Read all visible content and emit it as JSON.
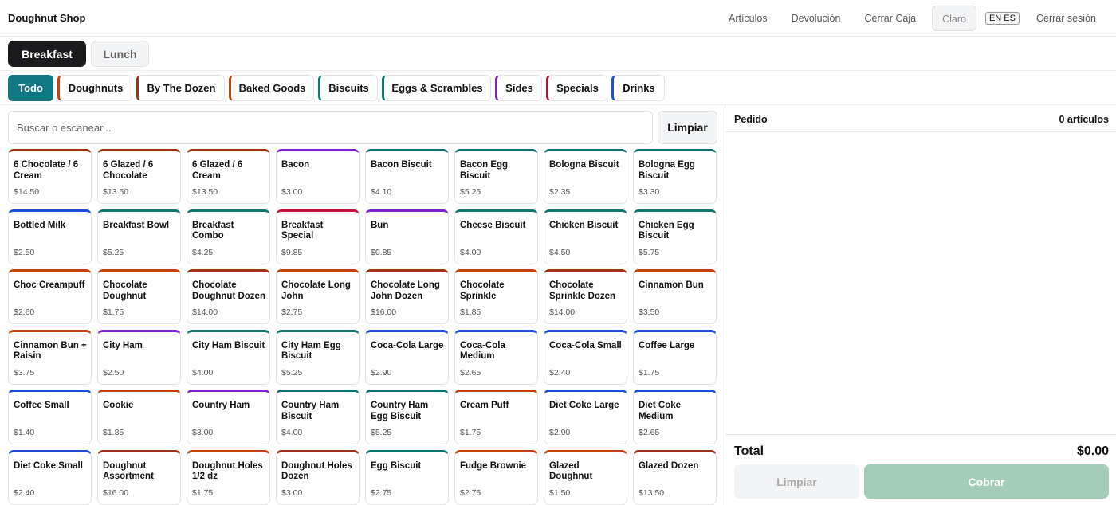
{
  "header": {
    "title": "Doughnut Shop",
    "nav": [
      "Artículos",
      "Devolución",
      "Cerrar Caja"
    ],
    "theme_label": "Claro",
    "lang_label": "EN ES",
    "logout_label": "Cerrar sesión"
  },
  "meals": [
    {
      "label": "Breakfast",
      "active": true
    },
    {
      "label": "Lunch",
      "active": false
    }
  ],
  "categories": [
    {
      "label": "Todo",
      "active": true,
      "color": "#117782"
    },
    {
      "label": "Doughnuts",
      "active": false,
      "color": "#c2410c"
    },
    {
      "label": "By The Dozen",
      "active": false,
      "color": "#9a3412"
    },
    {
      "label": "Baked Goods",
      "active": false,
      "color": "#c2410c"
    },
    {
      "label": "Biscuits",
      "active": false,
      "color": "#0f766e"
    },
    {
      "label": "Eggs & Scrambles",
      "active": false,
      "color": "#0f766e"
    },
    {
      "label": "Sides",
      "active": false,
      "color": "#7e22ce"
    },
    {
      "label": "Specials",
      "active": false,
      "color": "#be123c"
    },
    {
      "label": "Drinks",
      "active": false,
      "color": "#1d4ed8"
    }
  ],
  "search": {
    "placeholder": "Buscar o escanear...",
    "clear_label": "Limpiar"
  },
  "products": [
    {
      "name": "6 Chocolate / 6 Cream",
      "price": "$14.50",
      "color": "#9a3412"
    },
    {
      "name": "6 Glazed / 6 Chocolate",
      "price": "$13.50",
      "color": "#9a3412"
    },
    {
      "name": "6 Glazed / 6 Cream",
      "price": "$13.50",
      "color": "#9a3412"
    },
    {
      "name": "Bacon",
      "price": "$3.00",
      "color": "#7e22ce"
    },
    {
      "name": "Bacon Biscuit",
      "price": "$4.10",
      "color": "#0f766e"
    },
    {
      "name": "Bacon Egg Biscuit",
      "price": "$5.25",
      "color": "#0f766e"
    },
    {
      "name": "Bologna Biscuit",
      "price": "$2.35",
      "color": "#0f766e"
    },
    {
      "name": "Bologna Egg Biscuit",
      "price": "$3.30",
      "color": "#0f766e"
    },
    {
      "name": "Bottled Milk",
      "price": "$2.50",
      "color": "#1d4ed8"
    },
    {
      "name": "Breakfast Bowl",
      "price": "$5.25",
      "color": "#0f766e"
    },
    {
      "name": "Breakfast Combo",
      "price": "$4.25",
      "color": "#0f766e"
    },
    {
      "name": "Breakfast Special",
      "price": "$9.85",
      "color": "#be123c"
    },
    {
      "name": "Bun",
      "price": "$0.85",
      "color": "#7e22ce"
    },
    {
      "name": "Cheese Biscuit",
      "price": "$4.00",
      "color": "#0f766e"
    },
    {
      "name": "Chicken Biscuit",
      "price": "$4.50",
      "color": "#0f766e"
    },
    {
      "name": "Chicken Egg Biscuit",
      "price": "$5.75",
      "color": "#0f766e"
    },
    {
      "name": "Choc Creampuff",
      "price": "$2.60",
      "color": "#c2410c"
    },
    {
      "name": "Chocolate Doughnut",
      "price": "$1.75",
      "color": "#c2410c"
    },
    {
      "name": "Chocolate Doughnut Dozen",
      "price": "$14.00",
      "color": "#9a3412"
    },
    {
      "name": "Chocolate Long John",
      "price": "$2.75",
      "color": "#c2410c"
    },
    {
      "name": "Chocolate Long John Dozen",
      "price": "$16.00",
      "color": "#9a3412"
    },
    {
      "name": "Chocolate Sprinkle",
      "price": "$1.85",
      "color": "#c2410c"
    },
    {
      "name": "Chocolate Sprinkle Dozen",
      "price": "$14.00",
      "color": "#9a3412"
    },
    {
      "name": "Cinnamon Bun",
      "price": "$3.50",
      "color": "#c2410c"
    },
    {
      "name": "Cinnamon Bun + Raisin",
      "price": "$3.75",
      "color": "#c2410c"
    },
    {
      "name": "City Ham",
      "price": "$2.50",
      "color": "#7e22ce"
    },
    {
      "name": "City Ham Biscuit",
      "price": "$4.00",
      "color": "#0f766e"
    },
    {
      "name": "City Ham Egg Biscuit",
      "price": "$5.25",
      "color": "#0f766e"
    },
    {
      "name": "Coca-Cola Large",
      "price": "$2.90",
      "color": "#1d4ed8"
    },
    {
      "name": "Coca-Cola Medium",
      "price": "$2.65",
      "color": "#1d4ed8"
    },
    {
      "name": "Coca-Cola Small",
      "price": "$2.40",
      "color": "#1d4ed8"
    },
    {
      "name": "Coffee Large",
      "price": "$1.75",
      "color": "#1d4ed8"
    },
    {
      "name": "Coffee Small",
      "price": "$1.40",
      "color": "#1d4ed8"
    },
    {
      "name": "Cookie",
      "price": "$1.85",
      "color": "#c2410c"
    },
    {
      "name": "Country Ham",
      "price": "$3.00",
      "color": "#7e22ce"
    },
    {
      "name": "Country Ham Biscuit",
      "price": "$4.00",
      "color": "#0f766e"
    },
    {
      "name": "Country Ham Egg Biscuit",
      "price": "$5.25",
      "color": "#0f766e"
    },
    {
      "name": "Cream Puff",
      "price": "$1.75",
      "color": "#c2410c"
    },
    {
      "name": "Diet Coke Large",
      "price": "$2.90",
      "color": "#1d4ed8"
    },
    {
      "name": "Diet Coke Medium",
      "price": "$2.65",
      "color": "#1d4ed8"
    },
    {
      "name": "Diet Coke Small",
      "price": "$2.40",
      "color": "#1d4ed8"
    },
    {
      "name": "Doughnut Assortment",
      "price": "$16.00",
      "color": "#9a3412"
    },
    {
      "name": "Doughnut Holes 1/2 dz",
      "price": "$1.75",
      "color": "#c2410c"
    },
    {
      "name": "Doughnut Holes Dozen",
      "price": "$3.00",
      "color": "#9a3412"
    },
    {
      "name": "Egg Biscuit",
      "price": "$2.75",
      "color": "#0f766e"
    },
    {
      "name": "Fudge Brownie",
      "price": "$2.75",
      "color": "#c2410c"
    },
    {
      "name": "Glazed Doughnut",
      "price": "$1.50",
      "color": "#c2410c"
    },
    {
      "name": "Glazed Dozen",
      "price": "$13.50",
      "color": "#9a3412"
    }
  ],
  "order": {
    "title": "Pedido",
    "count": "0 artículos",
    "total_label": "Total",
    "total_value": "$0.00",
    "clear_label": "Limpiar",
    "charge_label": "Cobrar"
  }
}
